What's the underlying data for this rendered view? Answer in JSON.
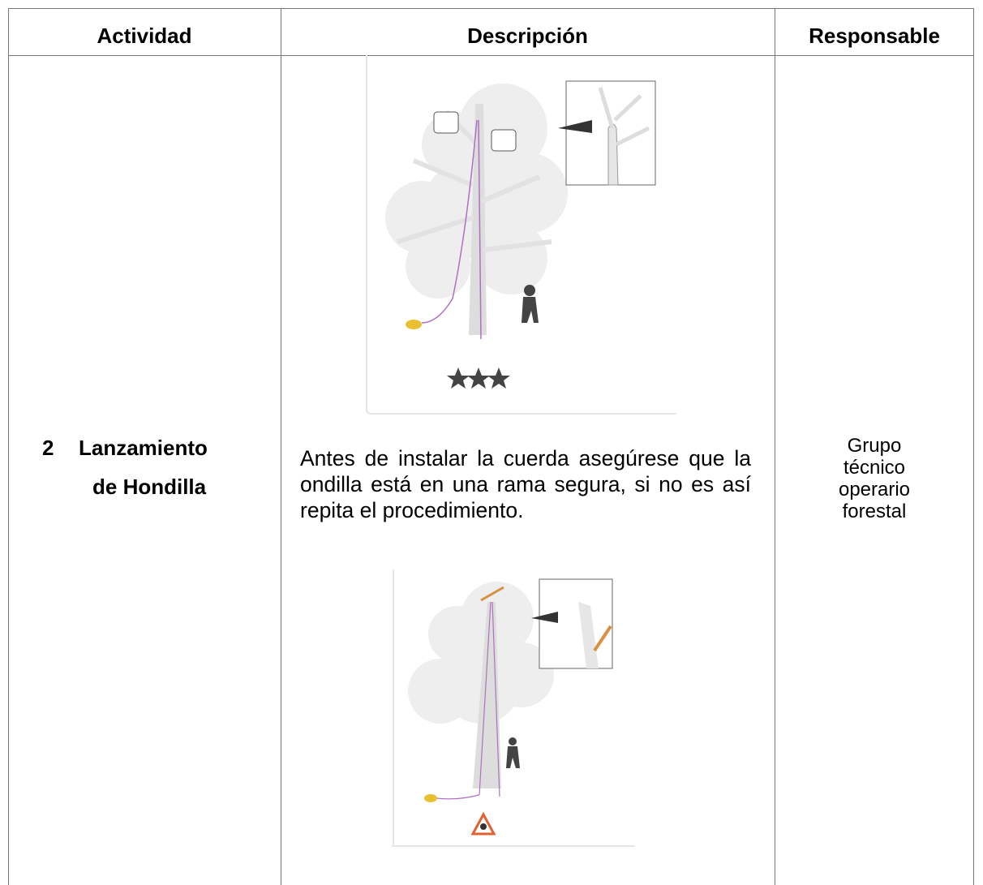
{
  "table": {
    "header": [
      "Actividad",
      "Descripción",
      "Responsable"
    ],
    "rows": [
      {
        "number": "2",
        "activity_lines": [
          "Lanzamiento",
          "de Hondilla"
        ],
        "description": "Antes de instalar la cuerda asegúrese que la ondilla está en una rama segura, si no es así repita el procedimiento.",
        "responsible_lines": [
          "Grupo",
          "técnico",
          "operario",
          "forestal"
        ]
      }
    ]
  }
}
